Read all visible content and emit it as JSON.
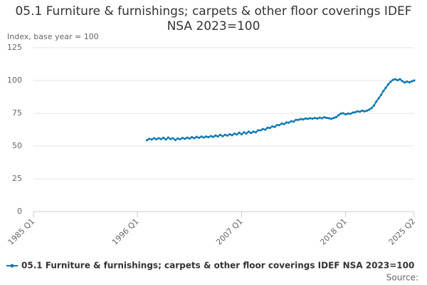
{
  "chart_data": {
    "type": "line",
    "title": "05.1 Furniture & furnishings; carpets & other floor coverings IDEF NSA 2023=100",
    "y_label": "Index, base year = 100",
    "source": "Source:",
    "categories": [
      "1985 Q1",
      null,
      null,
      null,
      null,
      null,
      null,
      null,
      null,
      null,
      null,
      null,
      null,
      null,
      null,
      null,
      null,
      null,
      null,
      null,
      null,
      null,
      null,
      null,
      null,
      null,
      null,
      null,
      null,
      null,
      null,
      null,
      null,
      null,
      null,
      null,
      null,
      null,
      null,
      null,
      null,
      null,
      null,
      null,
      "1996 Q1",
      null,
      null,
      null,
      null,
      null,
      null,
      null,
      null,
      null,
      null,
      null,
      null,
      null,
      null,
      null,
      null,
      null,
      null,
      null,
      null,
      null,
      null,
      null,
      null,
      null,
      null,
      null,
      null,
      null,
      null,
      null,
      null,
      null,
      null,
      null,
      null,
      null,
      null,
      null,
      null,
      null,
      null,
      null,
      "2007 Q1",
      null,
      null,
      null,
      null,
      null,
      null,
      null,
      null,
      null,
      null,
      null,
      null,
      null,
      null,
      null,
      null,
      null,
      null,
      null,
      null,
      null,
      null,
      null,
      null,
      null,
      null,
      null,
      null,
      null,
      null,
      null,
      null,
      null,
      null,
      null,
      null,
      null,
      null,
      null,
      null,
      null,
      null,
      null,
      "2018 Q1",
      null,
      null,
      null,
      null,
      null,
      null,
      null,
      null,
      null,
      null,
      null,
      null,
      null,
      null,
      null,
      null,
      null,
      null,
      null,
      null,
      null,
      null,
      null,
      null,
      null,
      null,
      null,
      null,
      "2025 Q2"
    ],
    "series": [
      {
        "name": "05.1 Furniture & furnishings; carpets & other floor coverings IDEF NSA 2023=100",
        "color": "#0e79b2",
        "values": [
          null,
          null,
          null,
          null,
          null,
          null,
          null,
          null,
          null,
          null,
          null,
          null,
          null,
          null,
          null,
          null,
          null,
          null,
          null,
          null,
          null,
          null,
          null,
          null,
          null,
          null,
          null,
          null,
          null,
          null,
          null,
          null,
          null,
          null,
          null,
          null,
          null,
          null,
          null,
          null,
          null,
          null,
          null,
          null,
          null,
          null,
          null,
          null,
          54.5,
          55.5,
          55.0,
          56.0,
          55.2,
          56.0,
          55.3,
          56.3,
          55.0,
          56.5,
          55.4,
          56.0,
          54.6,
          55.8,
          55.2,
          56.2,
          55.5,
          56.4,
          55.8,
          56.8,
          56.0,
          57.0,
          56.3,
          57.2,
          56.5,
          57.3,
          56.8,
          57.6,
          57.0,
          58.0,
          57.4,
          58.5,
          57.5,
          58.6,
          58.0,
          59.0,
          58.3,
          59.5,
          58.8,
          60.2,
          59.0,
          60.5,
          59.6,
          61.0,
          60.0,
          61.0,
          60.5,
          62.0,
          62.0,
          63.0,
          62.5,
          64.0,
          63.8,
          65.0,
          64.6,
          66.0,
          66.0,
          67.2,
          66.8,
          68.0,
          67.8,
          69.0,
          68.6,
          70.0,
          70.0,
          70.6,
          70.3,
          71.0,
          70.8,
          71.2,
          70.9,
          71.4,
          71.0,
          71.6,
          71.2,
          72.0,
          71.5,
          71.2,
          70.8,
          71.5,
          72.0,
          73.5,
          74.8,
          75.0,
          74.2,
          74.8,
          74.6,
          75.5,
          75.8,
          76.5,
          76.2,
          77.0,
          76.5,
          77.0,
          77.8,
          79.0,
          81.0,
          84.0,
          86.5,
          89.0,
          92.0,
          94.5,
          97.0,
          99.0,
          100.5,
          101.0,
          100.2,
          101.0,
          99.5,
          98.5,
          99.2,
          98.6,
          99.4,
          100.0
        ]
      }
    ],
    "ylim": [
      0,
      125
    ],
    "yticks": [
      0,
      25,
      50,
      75,
      100,
      125
    ],
    "grid": true,
    "legend": "bottom"
  }
}
